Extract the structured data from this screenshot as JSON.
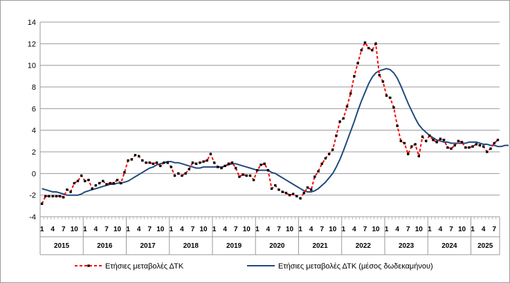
{
  "chart_data": {
    "type": "line",
    "ylim": [
      -4,
      14
    ],
    "yticks": [
      "-4",
      "-2",
      "0",
      "2",
      "4",
      "6",
      "8",
      "10",
      "12",
      "14"
    ],
    "grid": "horizontal",
    "month_tick_labels": [
      "1",
      "4",
      "7",
      "10"
    ],
    "year_labels": [
      "2015",
      "2016",
      "2017",
      "2018",
      "2019",
      "2020",
      "2021",
      "2022",
      "2023",
      "2024",
      "2025"
    ],
    "legend_position": "bottom",
    "series": [
      {
        "name": "Ετήσιες μεταβολές ΔΤΚ",
        "color": "#ff0000",
        "marker_color": "#000000",
        "style": "dashed-with-markers",
        "start": "2015-01",
        "values": [
          -2.8,
          -2.1,
          -2.1,
          -2.1,
          -2.1,
          -2.1,
          -2.2,
          -1.5,
          -1.7,
          -0.9,
          -0.7,
          -0.2,
          -0.7,
          -0.6,
          -1.4,
          -1.1,
          -0.9,
          -0.7,
          -1.0,
          -0.9,
          -0.9,
          -0.6,
          -0.9,
          0.1,
          1.2,
          1.3,
          1.7,
          1.6,
          1.2,
          1.0,
          1.0,
          0.9,
          1.0,
          0.7,
          1.0,
          1.0,
          0.6,
          -0.2,
          0.0,
          -0.2,
          0.0,
          0.4,
          1.0,
          0.9,
          1.0,
          1.1,
          1.2,
          1.8,
          1.0,
          0.6,
          0.5,
          0.7,
          0.9,
          1.0,
          0.5,
          -0.3,
          -0.1,
          -0.2,
          -0.2,
          -0.6,
          0.3,
          0.8,
          0.9,
          0.3,
          -1.4,
          -1.1,
          -1.5,
          -1.7,
          -1.8,
          -2.0,
          -1.9,
          -2.1,
          -2.3,
          -1.8,
          -1.3,
          -1.5,
          -0.3,
          0.2,
          0.9,
          1.4,
          1.8,
          2.2,
          3.5,
          4.8,
          5.1,
          6.2,
          7.4,
          9.0,
          10.2,
          11.4,
          12.1,
          11.6,
          11.4,
          12.0,
          9.1,
          8.5,
          7.2,
          7.0,
          6.1,
          4.4,
          3.0,
          2.8,
          1.8,
          2.5,
          2.7,
          1.6,
          3.4,
          3.0,
          3.5,
          3.1,
          2.9,
          3.2,
          3.1,
          2.4,
          2.3,
          2.6,
          3.0,
          2.9,
          2.4,
          2.4,
          2.5,
          2.7,
          2.6,
          2.5,
          2.0,
          2.3,
          2.8,
          3.1
        ]
      },
      {
        "name": "Ετήσιες μεταβολές ΔΤΚ (μέσος δωδεκαμήνου)",
        "color": "#1f497d",
        "style": "solid",
        "start": "2015-01",
        "values": [
          -1.4,
          -1.5,
          -1.6,
          -1.7,
          -1.7,
          -1.8,
          -1.9,
          -2.0,
          -2.0,
          -2.0,
          -2.0,
          -1.9,
          -1.7,
          -1.6,
          -1.5,
          -1.4,
          -1.3,
          -1.2,
          -1.1,
          -1.0,
          -1.0,
          -0.9,
          -0.9,
          -0.8,
          -0.7,
          -0.5,
          -0.3,
          -0.1,
          0.1,
          0.3,
          0.5,
          0.6,
          0.8,
          0.9,
          1.0,
          1.1,
          1.1,
          1.0,
          1.0,
          0.9,
          0.8,
          0.7,
          0.6,
          0.5,
          0.5,
          0.6,
          0.6,
          0.6,
          0.6,
          0.6,
          0.6,
          0.7,
          0.8,
          0.9,
          0.9,
          0.8,
          0.7,
          0.6,
          0.5,
          0.4,
          0.3,
          0.3,
          0.3,
          0.3,
          0.1,
          0.0,
          -0.2,
          -0.4,
          -0.6,
          -0.8,
          -1.0,
          -1.2,
          -1.4,
          -1.6,
          -1.7,
          -1.7,
          -1.6,
          -1.4,
          -1.1,
          -0.8,
          -0.4,
          0.0,
          0.6,
          1.3,
          2.1,
          3.0,
          3.9,
          4.8,
          5.8,
          6.7,
          7.5,
          8.3,
          8.9,
          9.3,
          9.5,
          9.6,
          9.7,
          9.6,
          9.3,
          8.8,
          8.1,
          7.3,
          6.5,
          5.8,
          5.1,
          4.5,
          4.1,
          3.8,
          3.5,
          3.3,
          3.1,
          3.0,
          2.9,
          2.9,
          2.8,
          2.8,
          2.8,
          2.8,
          2.8,
          2.9,
          2.9,
          2.9,
          2.8,
          2.7,
          2.7,
          2.6,
          2.6,
          2.5,
          2.5,
          2.6,
          2.6
        ]
      }
    ]
  }
}
